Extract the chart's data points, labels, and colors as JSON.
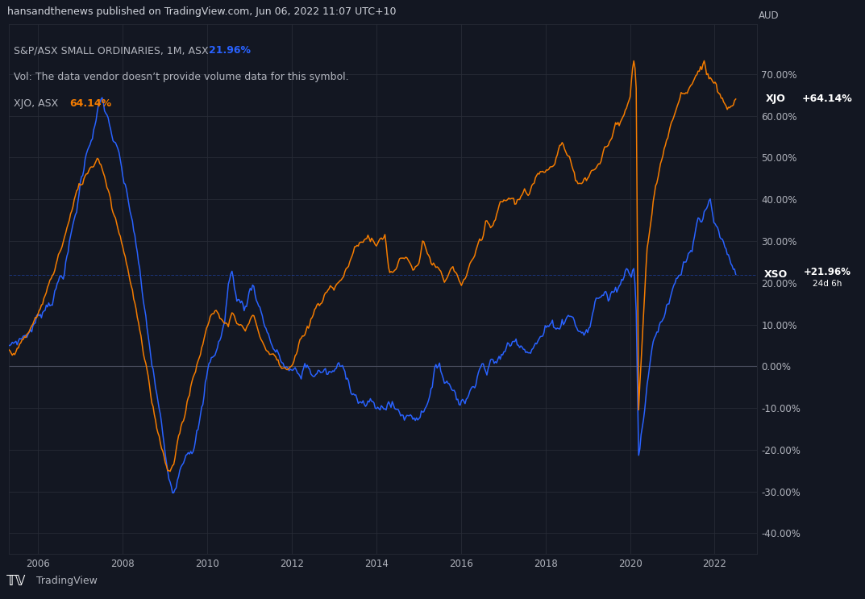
{
  "title_bar": "hansandthenews published on TradingView.com, Jun 06, 2022 11:07 UTC+10",
  "info_line1": "S&P/ASX SMALL ORDINARIES, 1M, ASX",
  "info_line1_pct": "21.96%",
  "info_line2": "Vol: The data vendor doesn’t provide volume data for this symbol.",
  "info_line3": "XJO, ASX",
  "info_line3_pct": "64.14%",
  "xso_label": "XSO",
  "xso_pct": "+21.96%",
  "xso_sub": "24d 6h",
  "xjo_label": "XJO",
  "xjo_pct": "+64.14%",
  "currency_label": "AUD",
  "bg_color": "#131722",
  "plot_bg": "#131722",
  "header_bg": "#1c2030",
  "grid_color": "#2a2e39",
  "xso_color": "#2962ff",
  "xjo_color": "#f57c00",
  "text_color": "#b2b5be",
  "title_color": "#d1d4dc",
  "white": "#ffffff",
  "tradingview_text": "TradingView",
  "yticks": [
    -40,
    -30,
    -20,
    -10,
    0,
    10,
    20,
    30,
    40,
    50,
    60,
    70
  ],
  "ylim_min": -45,
  "ylim_max": 82,
  "xlim_min": 2005.3,
  "xlim_max": 2023.0,
  "xtick_years": [
    2006,
    2008,
    2010,
    2012,
    2014,
    2016,
    2018,
    2020,
    2022
  ]
}
